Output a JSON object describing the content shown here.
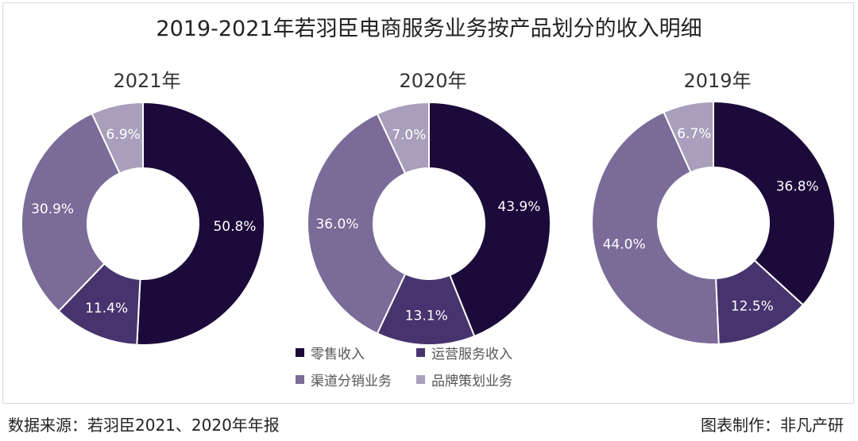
{
  "chart_data": [
    {
      "type": "pie",
      "title": "2021年",
      "categories": [
        "零售收入",
        "运营服务收入",
        "渠道分销业务",
        "品牌策划业务"
      ],
      "values": [
        50.8,
        11.4,
        30.9,
        6.9
      ],
      "labels": [
        "50.8%",
        "11.4%",
        "30.9%",
        "6.9%"
      ]
    },
    {
      "type": "pie",
      "title": "2020年",
      "categories": [
        "零售收入",
        "运营服务收入",
        "渠道分销业务",
        "品牌策划业务"
      ],
      "values": [
        43.9,
        13.1,
        36.0,
        7.0
      ],
      "labels": [
        "43.9%",
        "13.1%",
        "36.0%",
        "7.0%"
      ]
    },
    {
      "type": "pie",
      "title": "2019年",
      "categories": [
        "零售收入",
        "运营服务收入",
        "渠道分销业务",
        "品牌策划业务"
      ],
      "values": [
        36.8,
        12.5,
        44.0,
        6.7
      ],
      "labels": [
        "36.8%",
        "12.5%",
        "44.0%",
        "6.7%"
      ]
    }
  ],
  "title": "2019-2021年若羽臣电商服务业务按产品划分的收入明细",
  "legend": [
    "零售收入",
    "运营服务收入",
    "渠道分销业务",
    "品牌策划业务"
  ],
  "colors": [
    "#1c0a3a",
    "#47346e",
    "#7a6b98",
    "#a99fbc"
  ],
  "label_colors": [
    "#ffffff",
    "#ffffff",
    "#ffffff",
    "#ffffff"
  ],
  "source": "数据来源：若羽臣2021、2020年年报",
  "credit": "图表制作：非凡产研"
}
